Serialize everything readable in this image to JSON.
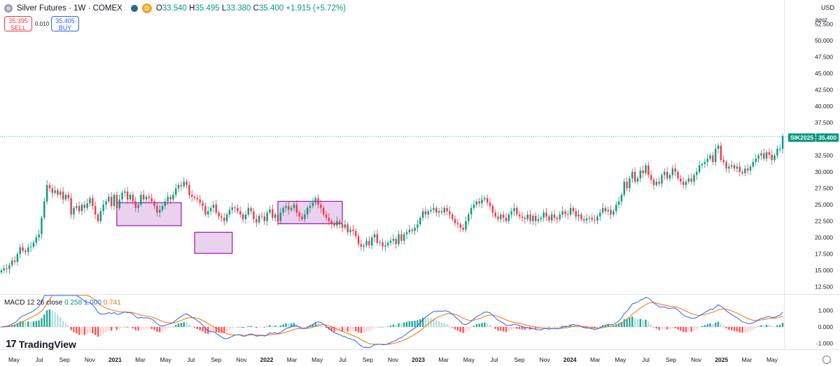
{
  "header": {
    "title": "Silver Futures · 1W · COMEX",
    "badge": "D",
    "ohlc_o_label": "O",
    "ohlc_o": "33.540",
    "ohlc_h_label": "H",
    "ohlc_h": "35.495",
    "ohlc_l_label": "L",
    "ohlc_l": "33.380",
    "ohlc_c_label": "C",
    "ohlc_c": "35.400",
    "change": "+1.915 (+5.72%)"
  },
  "trade": {
    "sell_price": "35.395",
    "sell_label": "SELL",
    "spread": "0.010",
    "buy_price": "35.405",
    "buy_label": "BUY"
  },
  "currency": "USD",
  "scale_mode": "apoz",
  "price_tag": {
    "symbol": "SIK2025",
    "price": "35.400"
  },
  "macd_legend": {
    "name": "MACD 12 26 close",
    "hist": "0.258",
    "macd": "1.000",
    "signal": "0.741"
  },
  "logo": {
    "mark": "17",
    "text": "TradingView"
  },
  "colors": {
    "up": "#089981",
    "down": "#f23645",
    "box_fill": "#e1bee7",
    "box_stroke": "#9c27b0",
    "macd_line": "#2962ff",
    "signal_line": "#ff6d00",
    "hist_up": "#26a69a",
    "hist_up_light": "#b2dfdb",
    "hist_down": "#ff5252",
    "hist_down_light": "#ffcdd2"
  },
  "chart_data": [
    {
      "type": "candlestick",
      "title": "Silver Futures · 1W · COMEX",
      "ylim": [
        11.5,
        53.5
      ],
      "y_ticks": [
        "52.500",
        "50.000",
        "47.500",
        "45.000",
        "42.500",
        "40.000",
        "37.500",
        "35.000",
        "32.500",
        "30.000",
        "27.500",
        "25.000",
        "22.500",
        "20.000",
        "17.500",
        "15.000",
        "12.500"
      ],
      "x_ticks": [
        "May",
        "Jul",
        "Sep",
        "Nov",
        "2021",
        "Mar",
        "May",
        "Jul",
        "Sep",
        "Nov",
        "2022",
        "Mar",
        "May",
        "Jul",
        "Sep",
        "Nov",
        "2023",
        "Mar",
        "May",
        "Jul",
        "Sep",
        "Nov",
        "2024",
        "Mar",
        "May",
        "Jul",
        "Sep",
        "Nov",
        "2025",
        "Mar",
        "May"
      ],
      "last_price": 35.4,
      "closes": [
        15.0,
        15.3,
        15.2,
        15.8,
        16.5,
        16.3,
        17.5,
        18.5,
        18.0,
        17.8,
        18.5,
        18.6,
        19.2,
        20.0,
        20.5,
        23.0,
        25.5,
        28.0,
        27.5,
        26.8,
        27.2,
        26.5,
        27.0,
        25.8,
        26.5,
        26.0,
        23.5,
        24.5,
        24.8,
        24.0,
        25.0,
        24.5,
        25.2,
        26.0,
        24.8,
        23.5,
        22.5,
        24.0,
        25.0,
        25.5,
        26.2,
        24.8,
        26.5,
        24.5,
        25.8,
        26.8,
        27.0,
        25.8,
        26.5,
        25.5,
        24.5,
        25.0,
        26.5,
        25.8,
        26.2,
        26.0,
        25.5,
        24.8,
        23.8,
        24.2,
        24.8,
        25.5,
        26.2,
        25.8,
        26.5,
        27.5,
        28.0,
        27.8,
        28.5,
        28.0,
        26.5,
        26.2,
        26.0,
        25.8,
        25.3,
        24.8,
        23.5,
        24.0,
        24.5,
        25.0,
        23.8,
        23.2,
        23.0,
        22.5,
        23.5,
        24.2,
        24.6,
        24.5,
        24.0,
        23.5,
        22.8,
        23.5,
        24.5,
        24.0,
        22.8,
        22.3,
        23.3,
        23.2,
        22.5,
        23.8,
        24.3,
        23.0,
        23.5,
        22.5,
        23.8,
        24.5,
        24.8,
        24.2,
        24.5,
        25.0,
        23.8,
        23.2,
        22.8,
        23.5,
        24.5,
        24.8,
        25.3,
        26.0,
        25.0,
        24.5,
        23.5,
        23.0,
        22.5,
        22.0,
        21.8,
        22.5,
        22.0,
        21.5,
        22.0,
        20.8,
        21.2,
        21.0,
        20.2,
        19.0,
        18.6,
        18.8,
        19.5,
        18.8,
        20.0,
        20.5,
        19.2,
        19.3,
        18.6,
        18.8,
        19.2,
        19.5,
        19.8,
        19.0,
        20.5,
        19.5,
        20.5,
        20.8,
        21.2,
        21.0,
        21.5,
        22.0,
        23.0,
        24.0,
        23.5,
        24.0,
        24.2,
        24.5,
        23.8,
        24.0,
        23.8,
        24.5,
        24.0,
        23.5,
        22.8,
        22.2,
        22.0,
        21.5,
        21.2,
        22.5,
        23.5,
        24.5,
        25.0,
        25.5,
        25.2,
        25.8,
        26.0,
        25.3,
        24.8,
        23.8,
        23.2,
        22.8,
        23.5,
        23.0,
        22.5,
        23.5,
        24.0,
        24.5,
        23.5,
        23.2,
        23.0,
        22.8,
        23.5,
        22.5,
        23.3,
        22.5,
        22.8,
        23.0,
        23.8,
        23.2,
        22.6,
        23.5,
        23.0,
        22.8,
        23.5,
        24.0,
        23.6,
        23.5,
        24.5,
        24.0,
        23.2,
        23.5,
        22.8,
        22.6,
        22.9,
        23.0,
        22.7,
        22.6,
        23.2,
        23.8,
        24.5,
        24.0,
        24.2,
        23.5,
        24.0,
        25.0,
        25.5,
        26.5,
        28.5,
        27.5,
        29.0,
        30.0,
        28.5,
        29.0,
        30.2,
        29.8,
        31.0,
        29.5,
        28.8,
        28.0,
        28.5,
        28.2,
        29.5,
        30.0,
        29.0,
        29.5,
        30.5,
        30.0,
        29.0,
        28.5,
        28.0,
        28.5,
        29.0,
        28.5,
        29.5,
        30.0,
        31.0,
        31.2,
        31.5,
        32.0,
        32.5,
        31.5,
        33.5,
        34.0,
        31.8,
        31.5,
        30.5,
        30.8,
        31.0,
        30.5,
        30.8,
        30.0,
        29.8,
        30.5,
        30.2,
        30.8,
        31.5,
        32.0,
        32.5,
        32.8,
        32.0,
        33.0,
        32.6,
        31.8,
        32.5,
        33.5,
        33.5,
        35.4
      ]
    },
    {
      "type": "line",
      "title": "MACD 12 26 close",
      "ylim": [
        -1.35,
        1.9
      ],
      "y_ticks": [
        "1.000",
        "0.000",
        "-1.000"
      ],
      "series": [
        {
          "name": "MACD 12 26 close"
        }
      ]
    }
  ]
}
